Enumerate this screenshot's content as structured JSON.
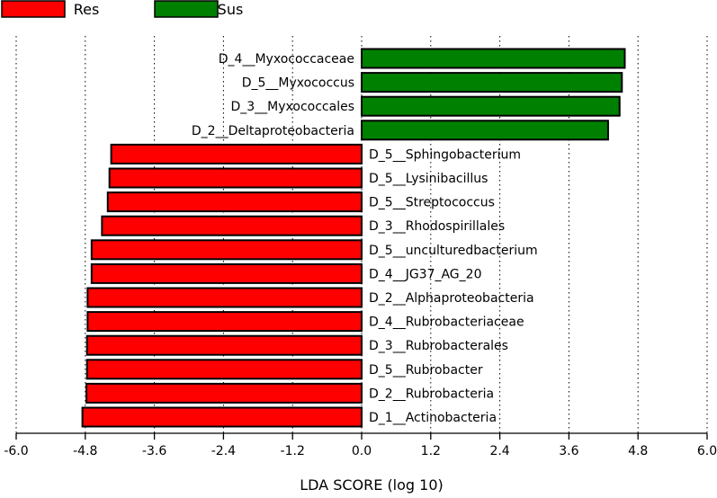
{
  "chart_data": {
    "type": "bar",
    "orientation": "horizontal",
    "xlabel": "LDA SCORE (log 10)",
    "xlim": [
      -6.0,
      6.0
    ],
    "xticks": [
      "-6.0",
      "-4.8",
      "-3.6",
      "-2.4",
      "-1.2",
      "0.0",
      "1.2",
      "2.4",
      "3.6",
      "4.8",
      "6.0"
    ],
    "grid": "vertical dotted",
    "legend_placement": "top-left",
    "series": [
      {
        "name": "Res",
        "color": "#ff0000"
      },
      {
        "name": "Sus",
        "color": "#008000"
      }
    ],
    "categories": [
      "D_4__Myxococcaceae",
      "D_5__Myxococcus",
      "D_3__Myxococcales",
      "D_2__Deltaproteobacteria",
      "D_5__Sphingobacterium",
      "D_5__Lysinibacillus",
      "D_5__Streptococcus",
      "D_3__Rhodospirillales",
      "D_5__unculturedbacterium",
      "D_4__JG37_AG_20",
      "D_2__Alphaproteobacteria",
      "D_4__Rubrobacteriaceae",
      "D_3__Rubrobacterales",
      "D_5__Rubrobacter",
      "D_2__Rubrobacteria",
      "D_1__Actinobacteria"
    ],
    "values": [
      4.57,
      4.52,
      4.48,
      4.28,
      -4.35,
      -4.38,
      -4.41,
      -4.51,
      -4.69,
      -4.69,
      -4.76,
      -4.76,
      -4.77,
      -4.77,
      -4.78,
      -4.85
    ],
    "groups": [
      "Sus",
      "Sus",
      "Sus",
      "Sus",
      "Res",
      "Res",
      "Res",
      "Res",
      "Res",
      "Res",
      "Res",
      "Res",
      "Res",
      "Res",
      "Res",
      "Res"
    ]
  }
}
